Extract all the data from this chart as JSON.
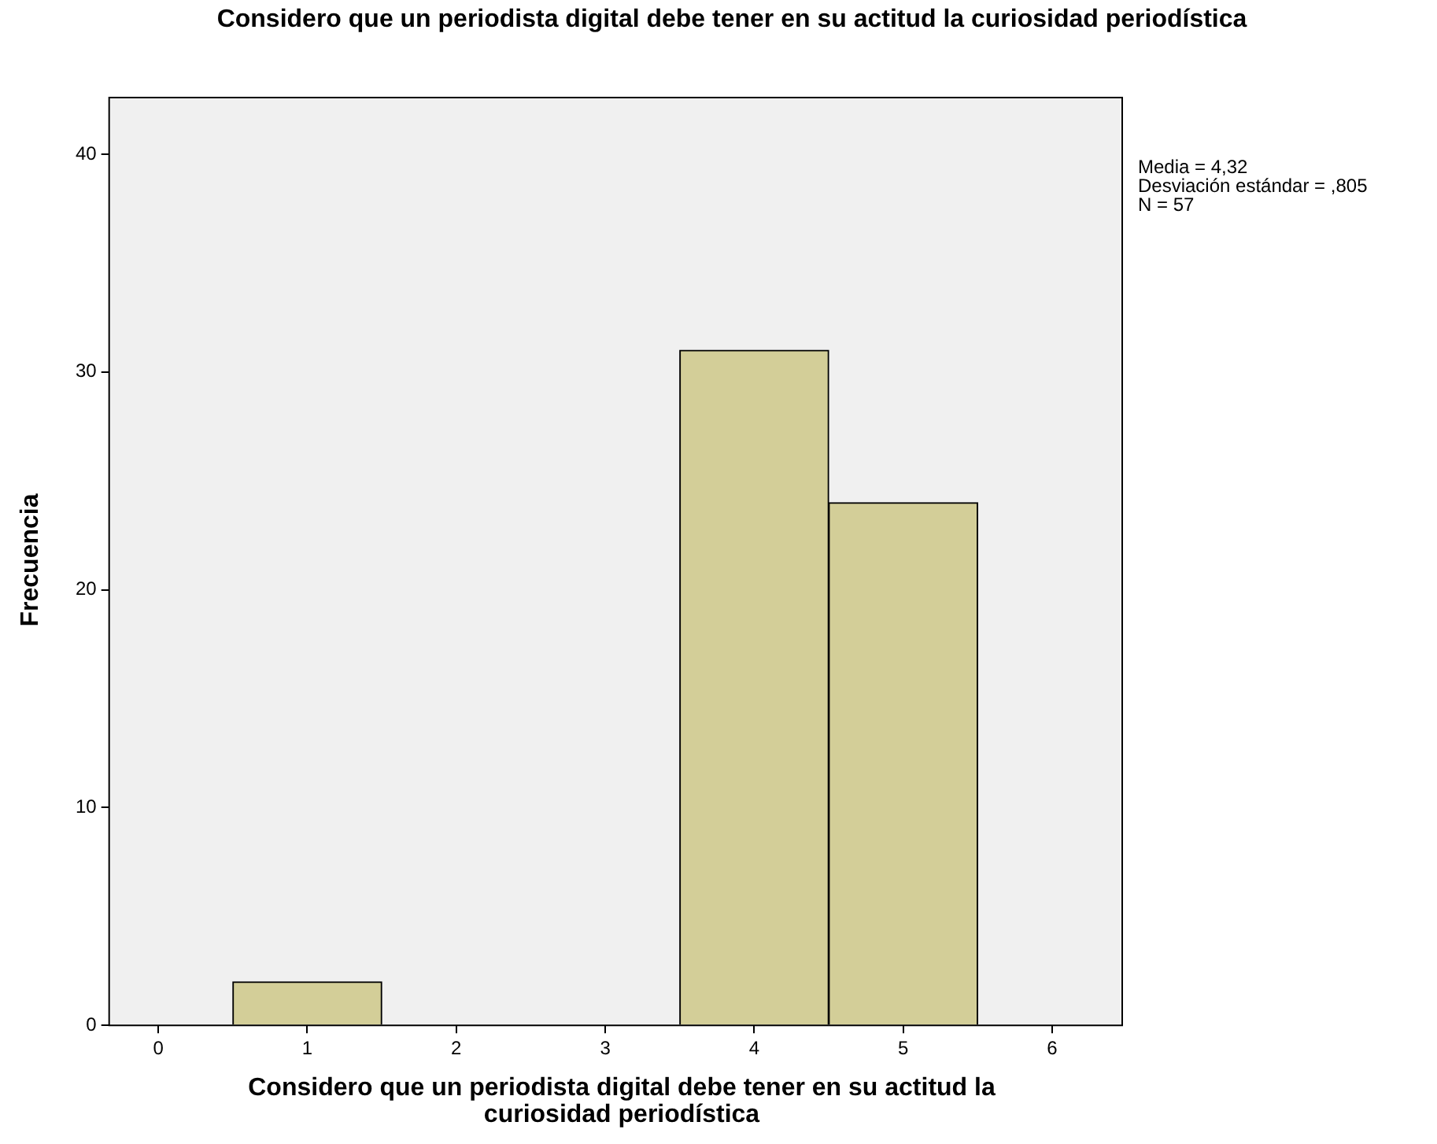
{
  "chart_data": {
    "type": "histogram",
    "title": "Considero que un periodista digital debe tener en su actitud la curiosidad periodística",
    "xlabel": "Considero que un periodista digital debe tener en su actitud la curiosidad periodística",
    "ylabel": "Frecuencia",
    "bins": [
      0.5,
      1.5,
      2.5,
      3.5,
      4.5,
      5.5
    ],
    "values": [
      2,
      0,
      0,
      31,
      24
    ],
    "color": "#d3ce98",
    "xlim": [
      -0.33,
      6.47
    ],
    "xticks": [
      0,
      1,
      2,
      3,
      4,
      5,
      6
    ],
    "ylim": [
      0,
      42.6
    ],
    "yticks": [
      0,
      10,
      20,
      30,
      40
    ],
    "annotations": [
      "Media = 4,32",
      "Desviación estándar = ,805",
      "N = 57"
    ],
    "grid": false,
    "legend": false
  }
}
